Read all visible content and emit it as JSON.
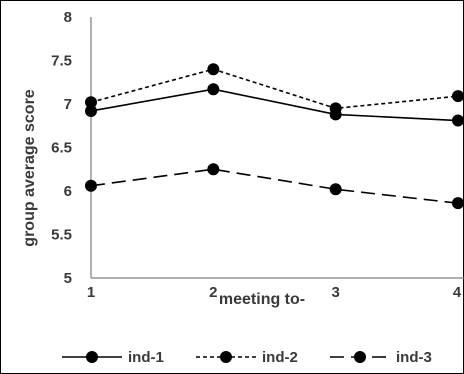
{
  "chart_data": {
    "type": "line",
    "title": "",
    "xlabel": "meeting to-",
    "ylabel": "group average score",
    "categories": [
      "1",
      "2",
      "3",
      "4"
    ],
    "ylim": [
      5,
      8
    ],
    "yticks": [
      "5",
      "5.5",
      "6",
      "6.5",
      "7",
      "7.5",
      "8"
    ],
    "grid": false,
    "legend_position": "bottom",
    "series": [
      {
        "name": "ind-1",
        "values": [
          6.92,
          7.17,
          6.88,
          6.81
        ],
        "dash": "solid",
        "color": "#000000"
      },
      {
        "name": "ind-2",
        "values": [
          7.02,
          7.4,
          6.95,
          7.09
        ],
        "dash": "dotted",
        "color": "#000000"
      },
      {
        "name": "ind-3",
        "values": [
          6.06,
          6.25,
          6.02,
          5.86
        ],
        "dash": "long-dash",
        "color": "#000000"
      }
    ]
  }
}
